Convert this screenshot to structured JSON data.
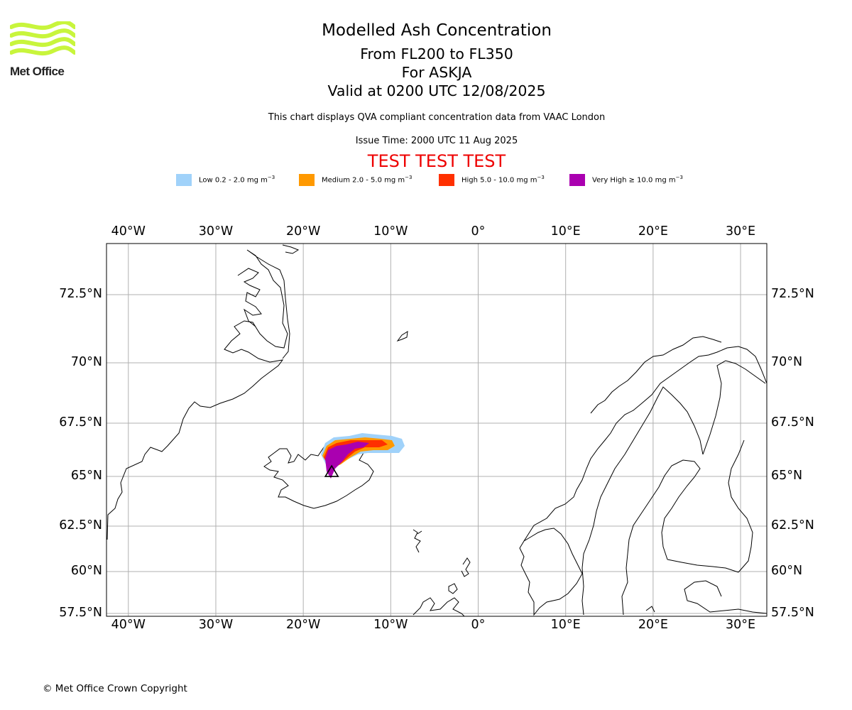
{
  "logo": {
    "text": "Met Office",
    "brand_color": "#c8f53c"
  },
  "header": {
    "title": "Modelled Ash Concentration",
    "levels": "From FL200 to FL350",
    "volcano": "For ASKJA",
    "valid": "Valid at 0200 UTC 12/08/2025",
    "compliance_note": "This chart displays QVA compliant concentration data from VAAC London",
    "issue_time": "Issue Time: 2000 UTC 11 Aug 2025",
    "test_banner": "TEST TEST TEST"
  },
  "legend": [
    {
      "label": "Low 0.2 - 2.0 mg m",
      "exp": "−3",
      "color": "#a0d2fa"
    },
    {
      "label": "Medium 2.0 - 5.0 mg m",
      "exp": "−3",
      "color": "#ff9900"
    },
    {
      "label": "High 5.0 - 10.0 mg m",
      "exp": "−3",
      "color": "#ff3000"
    },
    {
      "label": "Very High  ≥  10.0 mg m",
      "exp": "−3",
      "color": "#aa00b0"
    }
  ],
  "map": {
    "lon_range": [
      -42.5,
      33
    ],
    "lat_range": [
      57.4,
      74.5
    ],
    "lon_ticks": [
      {
        "value": -40,
        "label": "40°W"
      },
      {
        "value": -30,
        "label": "30°W"
      },
      {
        "value": -20,
        "label": "20°W"
      },
      {
        "value": -10,
        "label": "10°W"
      },
      {
        "value": 0,
        "label": "0°"
      },
      {
        "value": 10,
        "label": "10°E"
      },
      {
        "value": 20,
        "label": "20°E"
      },
      {
        "value": 30,
        "label": "30°E"
      }
    ],
    "lat_ticks": [
      {
        "value": 72.5,
        "label": "72.5°N"
      },
      {
        "value": 70,
        "label": "70°N"
      },
      {
        "value": 67.5,
        "label": "67.5°N"
      },
      {
        "value": 65,
        "label": "65°N"
      },
      {
        "value": 62.5,
        "label": "62.5°N"
      },
      {
        "value": 60,
        "label": "60°N"
      },
      {
        "value": 57.5,
        "label": "57.5°N"
      }
    ],
    "grid": true,
    "volcano_marker": {
      "name": "ASKJA",
      "lon": -16.75,
      "lat": 65.03,
      "symbol": "triangle"
    }
  },
  "footer": {
    "copyright": "© Met Office Crown Copyright"
  }
}
